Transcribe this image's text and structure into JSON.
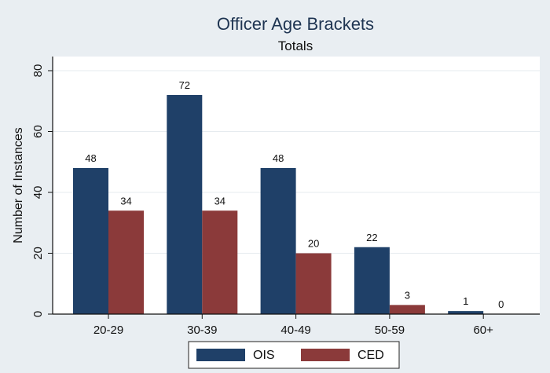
{
  "chart_data": {
    "type": "bar",
    "title": "Officer Age Brackets",
    "subtitle": "Totals",
    "xlabel": "",
    "ylabel": "Number of Instances",
    "categories": [
      "20-29",
      "30-39",
      "40-49",
      "50-59",
      "60+"
    ],
    "series": [
      {
        "name": "OIS",
        "values": [
          48,
          72,
          48,
          22,
          1
        ],
        "color": "#1f4068"
      },
      {
        "name": "CED",
        "values": [
          34,
          34,
          20,
          3,
          0
        ],
        "color": "#8b3a3a"
      }
    ],
    "ylim": [
      0,
      80
    ],
    "yticks": [
      0,
      20,
      40,
      60,
      80
    ],
    "grid": true,
    "legend_position": "bottom",
    "data_labels": true
  }
}
